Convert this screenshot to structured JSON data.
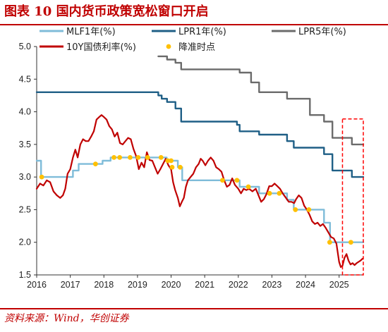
{
  "title": "图表 10    国内货币政策宽松窗口开启",
  "source": "资料来源：Wind，华创证券",
  "colors": {
    "accent": "#c00000",
    "mlf": "#7fbcd9",
    "lpr1": "#1f5f86",
    "lpr5": "#6b6b6b",
    "bond": "#c00000",
    "cut_marker": "#ffc000"
  },
  "chart_data": {
    "type": "line",
    "xlim": [
      2016.0,
      2025.72
    ],
    "ylim": [
      1.5,
      5.0
    ],
    "x_ticks": [
      "2016",
      "2017",
      "2018",
      "2019",
      "2020",
      "2021",
      "2022",
      "2023",
      "2024",
      "2025"
    ],
    "y_ticks": [
      "1.5",
      "2.0",
      "2.5",
      "3.0",
      "3.5",
      "4.0",
      "4.5",
      "5.0"
    ],
    "legend": [
      {
        "key": "mlf",
        "label": "MLF1年(%)"
      },
      {
        "key": "lpr1",
        "label": "LPR1年(%)"
      },
      {
        "key": "lpr5",
        "label": "LPR5年(%)"
      },
      {
        "key": "bond",
        "label": "10Y国债利率(%)"
      },
      {
        "key": "cut",
        "label": "降准时点"
      }
    ],
    "series": [
      {
        "name": "MLF1年(%)",
        "key": "mlf",
        "step": true,
        "points": [
          [
            2016.0,
            3.25
          ],
          [
            2016.13,
            3.0
          ],
          [
            2017.08,
            3.1
          ],
          [
            2017.25,
            3.2
          ],
          [
            2017.96,
            3.25
          ],
          [
            2018.2,
            3.3
          ],
          [
            2019.87,
            3.25
          ],
          [
            2020.2,
            3.15
          ],
          [
            2020.33,
            2.95
          ],
          [
            2022.04,
            2.85
          ],
          [
            2022.62,
            2.75
          ],
          [
            2023.45,
            2.65
          ],
          [
            2023.65,
            2.5
          ],
          [
            2024.55,
            2.3
          ],
          [
            2024.73,
            2.0
          ],
          [
            2025.72,
            2.0
          ]
        ]
      },
      {
        "name": "LPR1年(%)",
        "key": "lpr1",
        "step": true,
        "points": [
          [
            2016.0,
            4.3
          ],
          [
            2019.62,
            4.25
          ],
          [
            2019.72,
            4.2
          ],
          [
            2019.88,
            4.15
          ],
          [
            2020.13,
            4.05
          ],
          [
            2020.3,
            3.85
          ],
          [
            2021.96,
            3.8
          ],
          [
            2022.04,
            3.7
          ],
          [
            2022.62,
            3.65
          ],
          [
            2023.45,
            3.55
          ],
          [
            2023.65,
            3.45
          ],
          [
            2024.55,
            3.35
          ],
          [
            2024.8,
            3.1
          ],
          [
            2025.38,
            3.0
          ],
          [
            2025.72,
            3.0
          ]
        ]
      },
      {
        "name": "LPR5年(%)",
        "key": "lpr5",
        "step": true,
        "points": [
          [
            2019.62,
            4.85
          ],
          [
            2019.88,
            4.8
          ],
          [
            2020.13,
            4.75
          ],
          [
            2020.3,
            4.65
          ],
          [
            2022.04,
            4.6
          ],
          [
            2022.38,
            4.45
          ],
          [
            2022.62,
            4.3
          ],
          [
            2023.45,
            4.2
          ],
          [
            2024.13,
            3.95
          ],
          [
            2024.55,
            3.85
          ],
          [
            2024.8,
            3.6
          ],
          [
            2025.38,
            3.5
          ],
          [
            2025.72,
            3.5
          ]
        ]
      },
      {
        "name": "10Y国债利率(%)",
        "key": "bond",
        "step": false,
        "points": [
          [
            2016.0,
            2.82
          ],
          [
            2016.1,
            2.9
          ],
          [
            2016.2,
            2.87
          ],
          [
            2016.3,
            2.95
          ],
          [
            2016.4,
            2.92
          ],
          [
            2016.5,
            2.78
          ],
          [
            2016.6,
            2.72
          ],
          [
            2016.7,
            2.68
          ],
          [
            2016.78,
            2.72
          ],
          [
            2016.85,
            2.82
          ],
          [
            2016.92,
            3.05
          ],
          [
            2017.0,
            3.12
          ],
          [
            2017.08,
            3.3
          ],
          [
            2017.15,
            3.42
          ],
          [
            2017.22,
            3.3
          ],
          [
            2017.3,
            3.5
          ],
          [
            2017.38,
            3.58
          ],
          [
            2017.46,
            3.55
          ],
          [
            2017.54,
            3.55
          ],
          [
            2017.62,
            3.62
          ],
          [
            2017.7,
            3.7
          ],
          [
            2017.78,
            3.88
          ],
          [
            2017.86,
            3.92
          ],
          [
            2017.93,
            3.95
          ],
          [
            2018.0,
            3.92
          ],
          [
            2018.08,
            3.88
          ],
          [
            2018.16,
            3.78
          ],
          [
            2018.24,
            3.73
          ],
          [
            2018.32,
            3.62
          ],
          [
            2018.4,
            3.68
          ],
          [
            2018.48,
            3.52
          ],
          [
            2018.56,
            3.5
          ],
          [
            2018.64,
            3.55
          ],
          [
            2018.72,
            3.6
          ],
          [
            2018.8,
            3.58
          ],
          [
            2018.88,
            3.43
          ],
          [
            2018.96,
            3.32
          ],
          [
            2019.04,
            3.12
          ],
          [
            2019.12,
            3.22
          ],
          [
            2019.2,
            3.15
          ],
          [
            2019.28,
            3.38
          ],
          [
            2019.36,
            3.26
          ],
          [
            2019.44,
            3.25
          ],
          [
            2019.52,
            3.15
          ],
          [
            2019.6,
            3.05
          ],
          [
            2019.68,
            3.12
          ],
          [
            2019.76,
            3.2
          ],
          [
            2019.84,
            3.28
          ],
          [
            2019.92,
            3.18
          ],
          [
            2020.0,
            3.12
          ],
          [
            2020.06,
            2.92
          ],
          [
            2020.12,
            2.8
          ],
          [
            2020.2,
            2.68
          ],
          [
            2020.26,
            2.55
          ],
          [
            2020.32,
            2.62
          ],
          [
            2020.38,
            2.68
          ],
          [
            2020.44,
            2.85
          ],
          [
            2020.5,
            2.95
          ],
          [
            2020.58,
            3.0
          ],
          [
            2020.66,
            3.05
          ],
          [
            2020.74,
            3.15
          ],
          [
            2020.82,
            3.2
          ],
          [
            2020.88,
            3.28
          ],
          [
            2020.94,
            3.25
          ],
          [
            2021.02,
            3.18
          ],
          [
            2021.1,
            3.25
          ],
          [
            2021.18,
            3.3
          ],
          [
            2021.26,
            3.25
          ],
          [
            2021.34,
            3.15
          ],
          [
            2021.42,
            3.12
          ],
          [
            2021.5,
            3.08
          ],
          [
            2021.58,
            2.95
          ],
          [
            2021.66,
            2.85
          ],
          [
            2021.74,
            2.88
          ],
          [
            2021.82,
            2.98
          ],
          [
            2021.9,
            2.88
          ],
          [
            2022.0,
            2.82
          ],
          [
            2022.08,
            2.75
          ],
          [
            2022.16,
            2.82
          ],
          [
            2022.24,
            2.8
          ],
          [
            2022.32,
            2.82
          ],
          [
            2022.42,
            2.78
          ],
          [
            2022.52,
            2.82
          ],
          [
            2022.6,
            2.72
          ],
          [
            2022.68,
            2.62
          ],
          [
            2022.76,
            2.66
          ],
          [
            2022.84,
            2.74
          ],
          [
            2022.92,
            2.86
          ],
          [
            2023.0,
            2.86
          ],
          [
            2023.08,
            2.9
          ],
          [
            2023.16,
            2.86
          ],
          [
            2023.24,
            2.82
          ],
          [
            2023.32,
            2.75
          ],
          [
            2023.42,
            2.68
          ],
          [
            2023.5,
            2.62
          ],
          [
            2023.58,
            2.62
          ],
          [
            2023.66,
            2.6
          ],
          [
            2023.72,
            2.66
          ],
          [
            2023.8,
            2.72
          ],
          [
            2023.88,
            2.68
          ],
          [
            2023.96,
            2.56
          ],
          [
            2024.04,
            2.5
          ],
          [
            2024.12,
            2.42
          ],
          [
            2024.2,
            2.32
          ],
          [
            2024.28,
            2.28
          ],
          [
            2024.36,
            2.3
          ],
          [
            2024.44,
            2.25
          ],
          [
            2024.52,
            2.28
          ],
          [
            2024.6,
            2.22
          ],
          [
            2024.68,
            2.15
          ],
          [
            2024.76,
            2.08
          ],
          [
            2024.84,
            2.06
          ],
          [
            2024.92,
            1.98
          ],
          [
            2025.0,
            1.7
          ],
          [
            2025.05,
            1.62
          ],
          [
            2025.1,
            1.64
          ],
          [
            2025.16,
            1.76
          ],
          [
            2025.22,
            1.82
          ],
          [
            2025.28,
            1.72
          ],
          [
            2025.34,
            1.66
          ],
          [
            2025.4,
            1.68
          ],
          [
            2025.46,
            1.65
          ],
          [
            2025.52,
            1.68
          ],
          [
            2025.58,
            1.7
          ],
          [
            2025.64,
            1.72
          ],
          [
            2025.7,
            1.75
          ]
        ]
      },
      {
        "name": "降准时点",
        "key": "cut",
        "type": "scatter",
        "points": [
          [
            2016.15,
            3.0
          ],
          [
            2017.75,
            3.2
          ],
          [
            2018.3,
            3.3
          ],
          [
            2018.47,
            3.3
          ],
          [
            2018.78,
            3.3
          ],
          [
            2019.02,
            3.3
          ],
          [
            2019.3,
            3.3
          ],
          [
            2019.7,
            3.3
          ],
          [
            2019.9,
            3.25
          ],
          [
            2020.0,
            3.25
          ],
          [
            2020.03,
            3.15
          ],
          [
            2020.27,
            3.15
          ],
          [
            2021.53,
            2.95
          ],
          [
            2021.96,
            2.95
          ],
          [
            2022.3,
            2.85
          ],
          [
            2022.93,
            2.75
          ],
          [
            2023.22,
            2.75
          ],
          [
            2023.7,
            2.5
          ],
          [
            2024.1,
            2.5
          ],
          [
            2024.72,
            2.0
          ],
          [
            2025.35,
            2.0
          ]
        ]
      }
    ],
    "highlight_box": {
      "x": [
        2025.1,
        2025.72
      ],
      "y": [
        1.5,
        3.89
      ],
      "style": "dashed",
      "color": "#ff0000"
    }
  }
}
